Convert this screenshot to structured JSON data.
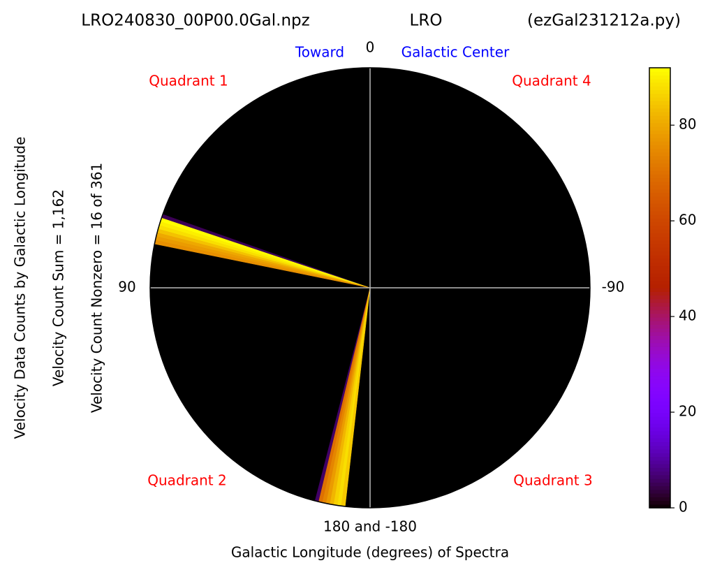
{
  "chart_data": {
    "type": "polar-wedge",
    "title_left": "LRO240830_00P00.0Gal.npz",
    "title_center": "LRO",
    "title_right": "(ezGal231212a.py)",
    "toward_label": "Toward",
    "center_label": "Galactic Center",
    "quadrant_labels": [
      "Quadrant 1",
      "Quadrant 2",
      "Quadrant 3",
      "Quadrant 4"
    ],
    "x_label": "Galactic Longitude (degrees) of Spectra",
    "y_labels": [
      "Velocity Data Counts by Galactic Longitude",
      "Velocity Count Sum = 1,162",
      "Velocity Count Nonzero = 16 of 361"
    ],
    "angle_ticks": [
      0,
      90,
      -90,
      {
        "value": 180,
        "label": "180 and -180"
      }
    ],
    "longitudes": [
      71,
      72,
      73,
      74,
      75,
      76,
      77,
      78,
      166,
      167,
      168,
      169,
      170,
      171,
      172,
      173
    ],
    "values": [
      5,
      92,
      90,
      88,
      84,
      80,
      78,
      76,
      6,
      70,
      74,
      78,
      82,
      86,
      88,
      85
    ],
    "colormap": "gnuplot",
    "clim": [
      0,
      92
    ],
    "cticks": [
      0,
      20,
      40,
      60,
      80
    ]
  }
}
